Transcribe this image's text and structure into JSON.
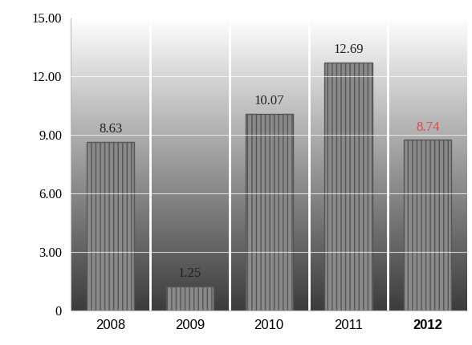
{
  "chart_data": {
    "type": "bar",
    "categories": [
      "2008",
      "2009",
      "2010",
      "2011",
      "2012"
    ],
    "values": [
      8.63,
      1.25,
      10.07,
      12.69,
      8.74
    ],
    "color": "#8a8a8a",
    "ylim": [
      0,
      15
    ],
    "yticks": [
      0,
      {
        "value": 3,
        "label": "3.00"
      },
      {
        "value": 6,
        "label": "6.00"
      },
      {
        "value": 9,
        "label": "9.00"
      },
      {
        "value": 12,
        "label": "12.00"
      },
      {
        "value": 15,
        "label": "15.00"
      }
    ],
    "grid": true,
    "data_labels": true
  }
}
